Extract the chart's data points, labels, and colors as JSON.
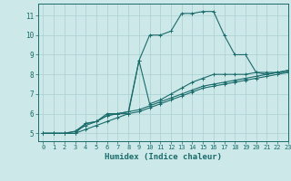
{
  "title": "",
  "xlabel": "Humidex (Indice chaleur)",
  "ylabel": "",
  "background_color": "#cce8e8",
  "line_color": "#1a6b6b",
  "grid_color": "#aacfcf",
  "xlim": [
    -0.5,
    23
  ],
  "ylim": [
    4.6,
    11.6
  ],
  "xticks": [
    0,
    1,
    2,
    3,
    4,
    5,
    6,
    7,
    8,
    9,
    10,
    11,
    12,
    13,
    14,
    15,
    16,
    17,
    18,
    19,
    20,
    21,
    22,
    23
  ],
  "yticks": [
    5,
    6,
    7,
    8,
    9,
    10,
    11
  ],
  "series": [
    {
      "x": [
        0,
        1,
        2,
        3,
        4,
        5,
        6,
        7,
        8,
        9,
        10,
        11,
        12,
        13,
        14,
        15,
        16,
        17,
        18,
        19,
        20,
        21,
        22,
        23
      ],
      "y": [
        5.0,
        5.0,
        5.0,
        5.1,
        5.5,
        5.6,
        5.9,
        6.0,
        6.0,
        8.7,
        10.0,
        10.0,
        10.2,
        11.1,
        11.1,
        11.2,
        11.2,
        10.0,
        9.0,
        9.0,
        8.1,
        8.0,
        8.1,
        8.1
      ]
    },
    {
      "x": [
        0,
        1,
        2,
        3,
        4,
        5,
        6,
        7,
        8,
        9,
        10,
        11,
        12,
        13,
        14,
        15,
        16,
        17,
        18,
        19,
        20,
        21,
        22,
        23
      ],
      "y": [
        5.0,
        5.0,
        5.0,
        5.0,
        5.5,
        5.6,
        6.0,
        6.0,
        6.1,
        8.7,
        6.5,
        6.7,
        7.0,
        7.3,
        7.6,
        7.8,
        8.0,
        8.0,
        8.0,
        8.0,
        8.1,
        8.1,
        8.1,
        8.2
      ]
    },
    {
      "x": [
        0,
        1,
        2,
        3,
        4,
        5,
        6,
        7,
        8,
        9,
        10,
        11,
        12,
        13,
        14,
        15,
        16,
        17,
        18,
        19,
        20,
        21,
        22,
        23
      ],
      "y": [
        5.0,
        5.0,
        5.0,
        5.1,
        5.4,
        5.6,
        5.9,
        6.0,
        6.1,
        6.2,
        6.4,
        6.6,
        6.8,
        7.0,
        7.2,
        7.4,
        7.5,
        7.6,
        7.7,
        7.8,
        7.9,
        8.0,
        8.1,
        8.2
      ]
    },
    {
      "x": [
        0,
        1,
        2,
        3,
        4,
        5,
        6,
        7,
        8,
        9,
        10,
        11,
        12,
        13,
        14,
        15,
        16,
        17,
        18,
        19,
        20,
        21,
        22,
        23
      ],
      "y": [
        5.0,
        5.0,
        5.0,
        5.0,
        5.2,
        5.4,
        5.6,
        5.8,
        6.0,
        6.1,
        6.3,
        6.5,
        6.7,
        6.9,
        7.1,
        7.3,
        7.4,
        7.5,
        7.6,
        7.7,
        7.8,
        7.9,
        8.0,
        8.1
      ]
    }
  ]
}
